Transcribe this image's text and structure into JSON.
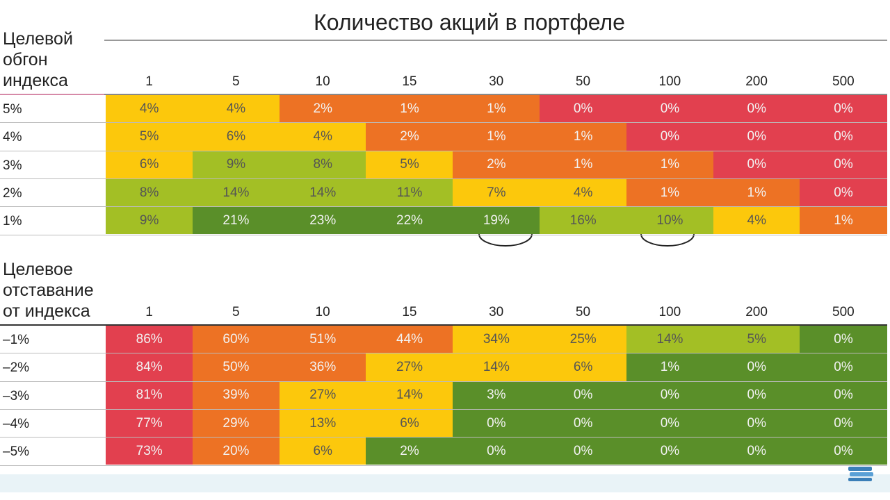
{
  "title": "Количество акций в портфеле",
  "tables": [
    {
      "header_label": [
        "Целевой",
        "обгон",
        "индекса"
      ],
      "columns": [
        "1",
        "5",
        "10",
        "15",
        "30",
        "50",
        "100",
        "200",
        "500"
      ],
      "rows": [
        {
          "label": "5%",
          "cells": [
            "4%",
            "4%",
            "2%",
            "1%",
            "1%",
            "0%",
            "0%",
            "0%",
            "0%"
          ],
          "colors": [
            "#fcc80c",
            "#fcc80c",
            "#ed7224",
            "#ed7224",
            "#ed7224",
            "#e2404f",
            "#e2404f",
            "#e2404f",
            "#e2404f"
          ]
        },
        {
          "label": "4%",
          "cells": [
            "5%",
            "6%",
            "4%",
            "2%",
            "1%",
            "1%",
            "0%",
            "0%",
            "0%"
          ],
          "colors": [
            "#fcc80c",
            "#fcc80c",
            "#fcc80c",
            "#ed7224",
            "#ed7224",
            "#ed7224",
            "#e2404f",
            "#e2404f",
            "#e2404f"
          ]
        },
        {
          "label": "3%",
          "cells": [
            "6%",
            "9%",
            "8%",
            "5%",
            "2%",
            "1%",
            "1%",
            "0%",
            "0%"
          ],
          "colors": [
            "#fcc80c",
            "#a3bf25",
            "#a3bf25",
            "#fcc80c",
            "#ed7224",
            "#ed7224",
            "#ed7224",
            "#e2404f",
            "#e2404f"
          ]
        },
        {
          "label": "2%",
          "cells": [
            "8%",
            "14%",
            "14%",
            "11%",
            "7%",
            "4%",
            "1%",
            "1%",
            "0%"
          ],
          "colors": [
            "#a3bf25",
            "#a3bf25",
            "#a3bf25",
            "#a3bf25",
            "#fcc80c",
            "#fcc80c",
            "#ed7224",
            "#ed7224",
            "#e2404f"
          ]
        },
        {
          "label": "1%",
          "cells": [
            "9%",
            "21%",
            "23%",
            "22%",
            "19%",
            "16%",
            "10%",
            "4%",
            "1%"
          ],
          "colors": [
            "#a3bf25",
            "#5a8f29",
            "#5a8f29",
            "#5a8f29",
            "#5a8f29",
            "#a3bf25",
            "#a3bf25",
            "#fcc80c",
            "#ed7224"
          ]
        }
      ]
    },
    {
      "header_label": [
        "Целевое",
        "отставание",
        "от индекса"
      ],
      "columns": [
        "1",
        "5",
        "10",
        "15",
        "30",
        "50",
        "100",
        "200",
        "500"
      ],
      "rows": [
        {
          "label": "–1%",
          "cells": [
            "86%",
            "60%",
            "51%",
            "44%",
            "34%",
            "25%",
            "14%",
            "5%",
            "0%"
          ],
          "colors": [
            "#e2404f",
            "#ed7224",
            "#ed7224",
            "#ed7224",
            "#fcc80c",
            "#fcc80c",
            "#a3bf25",
            "#a3bf25",
            "#5a8f29"
          ]
        },
        {
          "label": "–2%",
          "cells": [
            "84%",
            "50%",
            "36%",
            "27%",
            "14%",
            "6%",
            "1%",
            "0%",
            "0%"
          ],
          "colors": [
            "#e2404f",
            "#ed7224",
            "#ed7224",
            "#fcc80c",
            "#fcc80c",
            "#fcc80c",
            "#5a8f29",
            "#5a8f29",
            "#5a8f29"
          ]
        },
        {
          "label": "–3%",
          "cells": [
            "81%",
            "39%",
            "27%",
            "14%",
            "3%",
            "0%",
            "0%",
            "0%",
            "0%"
          ],
          "colors": [
            "#e2404f",
            "#ed7224",
            "#fcc80c",
            "#fcc80c",
            "#5a8f29",
            "#5a8f29",
            "#5a8f29",
            "#5a8f29",
            "#5a8f29"
          ]
        },
        {
          "label": "–4%",
          "cells": [
            "77%",
            "29%",
            "13%",
            "6%",
            "0%",
            "0%",
            "0%",
            "0%",
            "0%"
          ],
          "colors": [
            "#e2404f",
            "#ed7224",
            "#fcc80c",
            "#fcc80c",
            "#5a8f29",
            "#5a8f29",
            "#5a8f29",
            "#5a8f29",
            "#5a8f29"
          ]
        },
        {
          "label": "–5%",
          "cells": [
            "73%",
            "20%",
            "6%",
            "2%",
            "0%",
            "0%",
            "0%",
            "0%",
            "0%"
          ],
          "colors": [
            "#e2404f",
            "#ed7224",
            "#fcc80c",
            "#5a8f29",
            "#5a8f29",
            "#5a8f29",
            "#5a8f29",
            "#5a8f29",
            "#5a8f29"
          ]
        }
      ]
    }
  ]
}
